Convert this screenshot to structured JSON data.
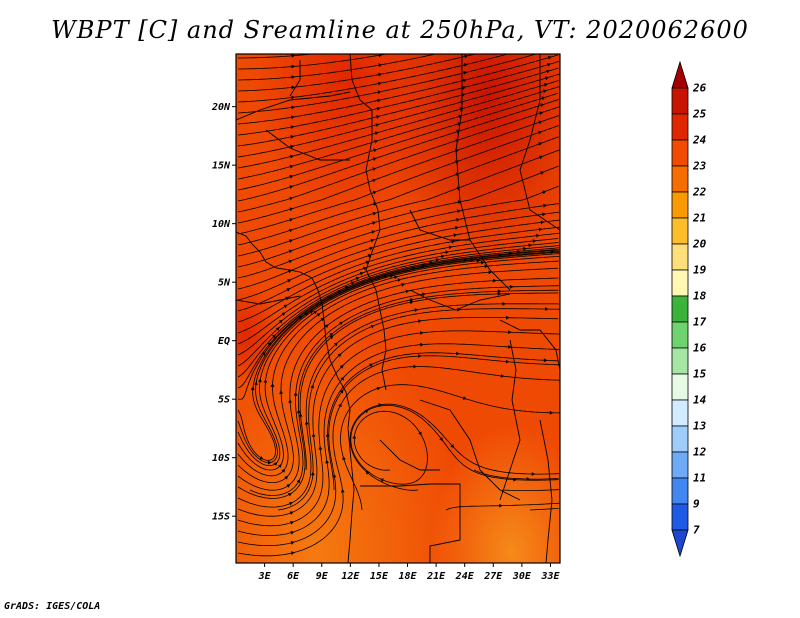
{
  "title": "WBPT [C] and Sreamline at 250hPa, VT: 2020062600",
  "credit": "GrADS: IGES/COLA",
  "map": {
    "lat_labels": [
      "20N",
      "15N",
      "10N",
      "5N",
      "EQ",
      "5S",
      "10S",
      "15S"
    ],
    "lon_labels": [
      "3E",
      "6E",
      "9E",
      "12E",
      "15E",
      "18E",
      "21E",
      "24E",
      "27E",
      "30E",
      "33E"
    ],
    "lat_values": [
      20,
      15,
      10,
      5,
      0,
      -5,
      -10,
      -15
    ],
    "lon_values": [
      3,
      6,
      9,
      12,
      15,
      18,
      21,
      24,
      27,
      30,
      33
    ],
    "lon_range": [
      0,
      34
    ],
    "lat_range": [
      -19,
      24.5
    ]
  },
  "colorbar": {
    "labels": [
      "26",
      "25",
      "24",
      "23",
      "22",
      "21",
      "20",
      "19",
      "18",
      "17",
      "16",
      "15",
      "14",
      "13",
      "12",
      "11",
      "9",
      "7"
    ],
    "colors": [
      "#a50000",
      "#c81400",
      "#e02800",
      "#f04b00",
      "#f66e00",
      "#fa9a00",
      "#fbbe2a",
      "#fde07a",
      "#fff7b4",
      "#3cb43c",
      "#6ed26e",
      "#a5e6a5",
      "#e6fae6",
      "#d2ebff",
      "#9fcdfa",
      "#6eaaf5",
      "#4287f0",
      "#1e5ae6",
      "#1e46d2"
    ]
  }
}
